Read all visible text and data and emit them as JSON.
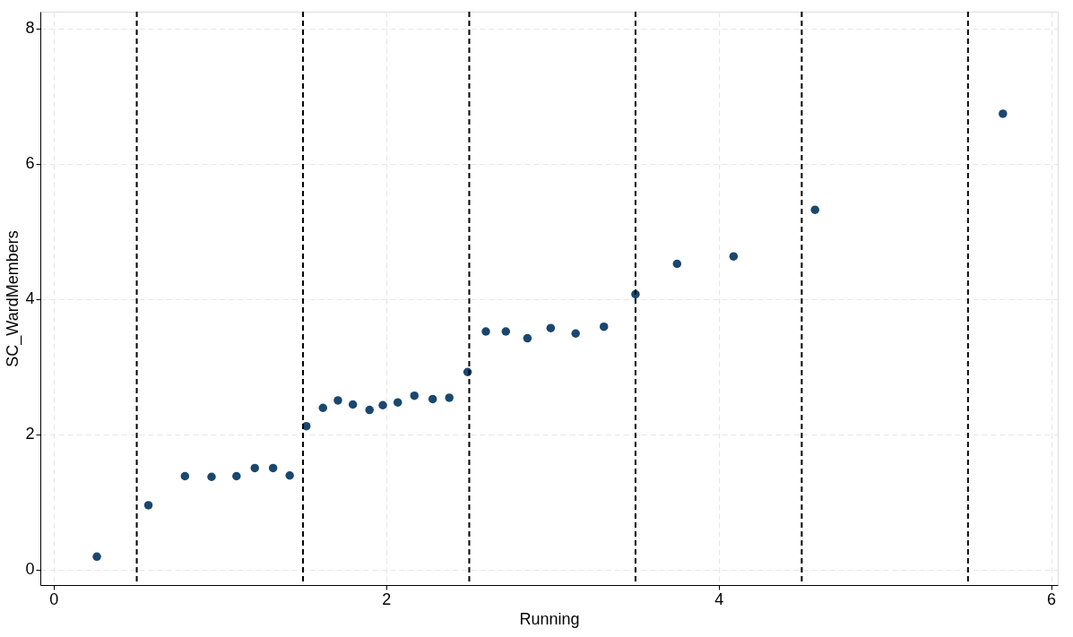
{
  "chart_data": {
    "type": "scatter",
    "xlabel": "Running",
    "ylabel": "SC_WardMembers",
    "x": [
      0.26,
      0.57,
      0.79,
      0.95,
      1.1,
      1.21,
      1.32,
      1.42,
      1.52,
      1.62,
      1.71,
      1.8,
      1.9,
      1.98,
      2.07,
      2.17,
      2.28,
      2.38,
      2.49,
      2.6,
      2.72,
      2.85,
      2.99,
      3.14,
      3.31,
      3.5,
      3.75,
      4.09,
      4.58,
      5.71
    ],
    "series": [
      {
        "color": "#1a476f",
        "values": [
          0.19,
          0.95,
          1.38,
          1.37,
          1.38,
          1.5,
          1.5,
          1.39,
          2.12,
          2.39,
          2.5,
          2.44,
          2.36,
          2.43,
          2.47,
          2.57,
          2.52,
          2.54,
          2.92,
          3.52,
          3.52,
          3.42,
          3.57,
          3.49,
          3.59,
          4.07,
          4.52,
          4.63,
          5.32,
          6.74
        ]
      }
    ],
    "xlim": [
      -0.08,
      6.04
    ],
    "ylim": [
      -0.23,
      8.25
    ],
    "xticks": [
      0,
      2,
      4,
      6
    ],
    "yticks": [
      0,
      2,
      4,
      6,
      8
    ],
    "grid": true,
    "marker": "circle",
    "ref_lines": [
      {
        "axis": "x",
        "value": 0.5,
        "color": "#000000",
        "line_style": "dashed"
      },
      {
        "axis": "x",
        "value": 1.5,
        "color": "#000000",
        "line_style": "dashed"
      },
      {
        "axis": "x",
        "value": 2.5,
        "color": "#000000",
        "line_style": "dashed"
      },
      {
        "axis": "x",
        "value": 3.5,
        "color": "#000000",
        "line_style": "dashed"
      },
      {
        "axis": "x",
        "value": 4.5,
        "color": "#000000",
        "line_style": "dashed"
      },
      {
        "axis": "x",
        "value": 5.5,
        "color": "#000000",
        "line_style": "dashed"
      }
    ]
  }
}
